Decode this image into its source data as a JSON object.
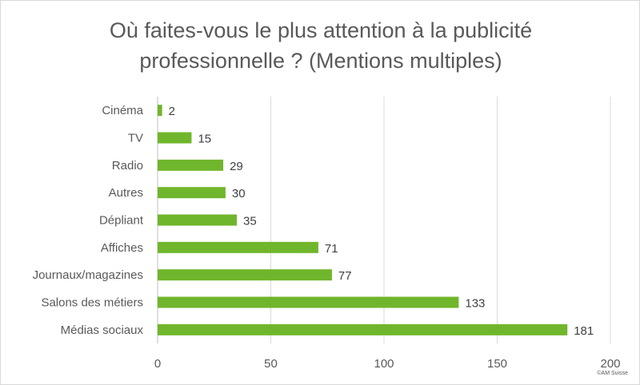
{
  "chart_data": {
    "type": "bar",
    "orientation": "horizontal",
    "title_lines": [
      "Où faites-vous le plus attention à la publicité",
      "professionnelle ? (Mentions multiples)"
    ],
    "categories": [
      "Cinéma",
      "TV",
      "Radio",
      "Autres",
      "Dépliant",
      "Affiches",
      "Journaux/magazines",
      "Salons des métiers",
      "Médias sociaux"
    ],
    "values": [
      2,
      15,
      29,
      30,
      35,
      71,
      77,
      133,
      181
    ],
    "xlim": [
      0,
      200
    ],
    "xticks": [
      0,
      50,
      100,
      150,
      200
    ],
    "grid": true,
    "legend": "none",
    "bar_color": "#70b62c",
    "data_labels": true
  },
  "footer": {
    "copyright": "©AM Suisse"
  }
}
